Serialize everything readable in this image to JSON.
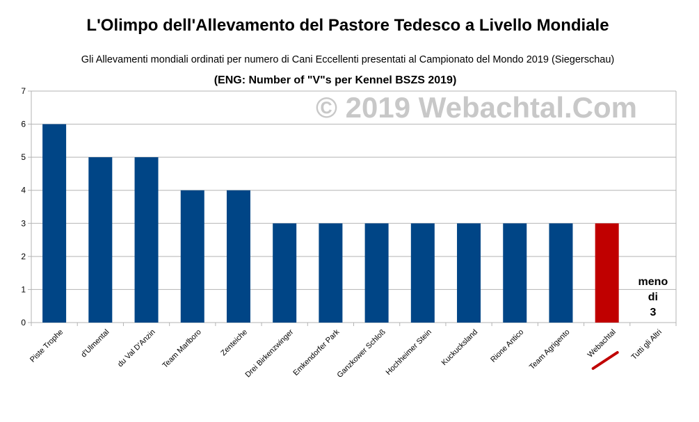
{
  "chart_data": {
    "type": "bar",
    "title": "L'Olimpo dell'Allevamento del Pastore Tedesco a Livello Mondiale",
    "subtitle": "Gli Allevamenti mondiali ordinati per numero di Cani Eccellenti presentati al Campionato del Mondo 2019 (Siegerschau)",
    "subtitle2": "(ENG: Number of \"V\"s per Kennel BSZS 2019)",
    "watermark": "© 2019 Webachtal.Com",
    "xlabel": "",
    "ylabel": "",
    "ylim": [
      0,
      7
    ],
    "yticks": [
      0,
      1,
      2,
      3,
      4,
      5,
      6,
      7
    ],
    "grid": true,
    "categories": [
      "Piste Trophe",
      "d'Ulmental",
      "du Val D'Anzin",
      "Team Marlboro",
      "Zenteiche",
      "Drei Birkenzwinger",
      "Emkendorfer Park",
      "Ganzkower Schloß",
      "Hochheimer Stein",
      "Kuckucksland",
      "Rione Antico",
      "Team Agrigento",
      "Webachtal",
      "Tutti gli Altri"
    ],
    "values": [
      6,
      5,
      5,
      4,
      4,
      3,
      3,
      3,
      3,
      3,
      3,
      3,
      3,
      null
    ],
    "colors": {
      "default": "#004586",
      "highlight": "#c00000",
      "highlight_category": "Webachtal"
    },
    "annotation": {
      "category": "Tutti gli Altri",
      "lines": [
        "meno",
        "di",
        "3"
      ]
    }
  }
}
